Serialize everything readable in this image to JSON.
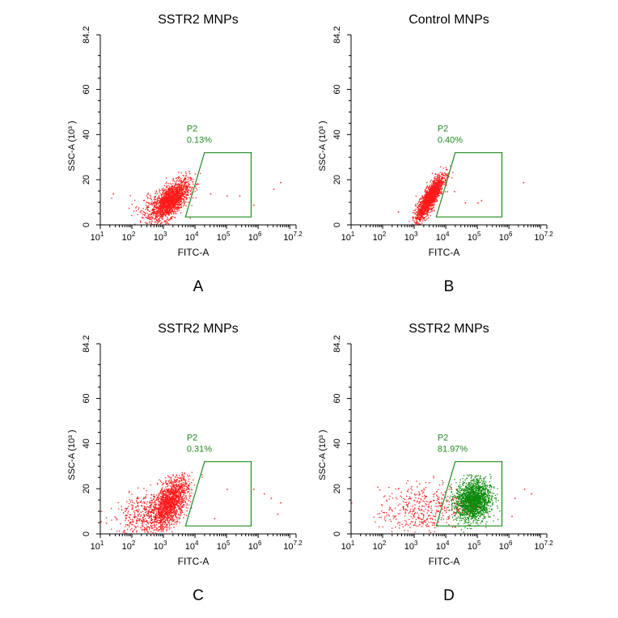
{
  "panels": [
    {
      "title": "SSTR2 MNPs",
      "letter": "A",
      "xlabel": "FITC-A",
      "ylabel": "SSC-A  (10³  )",
      "gate": {
        "name": "P2",
        "percent": "0.13%"
      }
    },
    {
      "title": "Control MNPs",
      "letter": "B",
      "xlabel": "FITC-A",
      "ylabel": "SSC-A  (10³  )",
      "gate": {
        "name": "P2",
        "percent": "0.40%"
      }
    },
    {
      "title": "SSTR2 MNPs",
      "letter": "C",
      "xlabel": "FITC-A",
      "ylabel": "SSC-A  (10³  )",
      "gate": {
        "name": "P2",
        "percent": "0.31%"
      }
    },
    {
      "title": "SSTR2 MNPs",
      "letter": "D",
      "xlabel": "FITC-A",
      "ylabel": "SSC-A  (10³  )",
      "gate": {
        "name": "P2",
        "percent": "81.97%"
      }
    }
  ],
  "colors": {
    "events": "#ff1a1a",
    "gated_events": "#0a8a0a",
    "gate": "#1f8a1f",
    "axis": "#000000"
  },
  "chart_data": [
    {
      "type": "scatter",
      "title": "SSTR2 MNPs",
      "xlabel": "FITC-A",
      "ylabel": "SSC-A (10³)",
      "x_scale": "log",
      "xlim": [
        10,
        15848932
      ],
      "ylim": [
        0,
        84.2
      ],
      "x_tick_labels": [
        "10¹",
        "10²",
        "10³",
        "10⁴",
        "10⁵",
        "10⁶",
        "10⁷·²"
      ],
      "y_tick_labels": [
        "0",
        "20",
        "40",
        "60",
        "84.2"
      ],
      "gate": {
        "name": "P2",
        "percent": 0.13,
        "vertices_xy": [
          [
            5000,
            3.5
          ],
          [
            600000,
            3.5
          ],
          [
            600000,
            32
          ],
          [
            20000,
            32
          ]
        ]
      },
      "populations": [
        {
          "color": "#ff1a1a",
          "center_x": 1600,
          "center_y": 11,
          "spread_log_x": 0.3,
          "spread_y": 4.5,
          "correlation": 0.65,
          "events": 1700
        },
        {
          "color": "#ff1a1a",
          "center_x": 500,
          "center_y": 8,
          "spread_log_x": 0.4,
          "spread_y": 4,
          "correlation": 0.3,
          "events": 140
        }
      ],
      "outliers": [
        [
          30000,
          14
        ],
        [
          100000,
          13
        ],
        [
          250000,
          13
        ],
        [
          700000,
          9
        ],
        [
          3000000,
          16
        ],
        [
          5000000,
          19
        ],
        [
          25,
          14
        ]
      ]
    },
    {
      "type": "scatter",
      "title": "Control MNPs",
      "xlabel": "FITC-A",
      "ylabel": "SSC-A (10³)",
      "x_scale": "log",
      "xlim": [
        10,
        15848932
      ],
      "ylim": [
        0,
        84.2
      ],
      "x_tick_labels": [
        "10¹",
        "10²",
        "10³",
        "10⁴",
        "10⁵",
        "10⁶",
        "10⁷·²"
      ],
      "y_tick_labels": [
        "0",
        "20",
        "40",
        "60",
        "84.2"
      ],
      "gate": {
        "name": "P2",
        "percent": 0.4,
        "vertices_xy": [
          [
            5000,
            3.5
          ],
          [
            600000,
            3.5
          ],
          [
            600000,
            32
          ],
          [
            20000,
            32
          ]
        ]
      },
      "populations": [
        {
          "color": "#ff1a1a",
          "center_x": 3000,
          "center_y": 12,
          "spread_log_x": 0.22,
          "spread_y": 5,
          "correlation": 0.85,
          "events": 1700
        }
      ],
      "outliers": [
        [
          18000,
          15
        ],
        [
          40000,
          10
        ],
        [
          100000,
          10
        ],
        [
          130000,
          11
        ],
        [
          2800000,
          19
        ],
        [
          300,
          6
        ]
      ]
    },
    {
      "type": "scatter",
      "title": "SSTR2 MNPs",
      "xlabel": "FITC-A",
      "ylabel": "SSC-A (10³)",
      "x_scale": "log",
      "xlim": [
        10,
        15848932
      ],
      "ylim": [
        0,
        84.2
      ],
      "x_tick_labels": [
        "10¹",
        "10²",
        "10³",
        "10⁴",
        "10⁵",
        "10⁶",
        "10⁷·²"
      ],
      "y_tick_labels": [
        "0",
        "20",
        "40",
        "60",
        "84.2"
      ],
      "gate": {
        "name": "P2",
        "percent": 0.31,
        "vertices_xy": [
          [
            5000,
            3.5
          ],
          [
            600000,
            3.5
          ],
          [
            600000,
            32
          ],
          [
            20000,
            32
          ]
        ]
      },
      "populations": [
        {
          "color": "#ff1a1a",
          "center_x": 1600,
          "center_y": 14,
          "spread_log_x": 0.28,
          "spread_y": 5.5,
          "correlation": 0.55,
          "events": 1500
        },
        {
          "color": "#ff1a1a",
          "center_x": 250,
          "center_y": 9,
          "spread_log_x": 0.45,
          "spread_y": 5,
          "correlation": 0.3,
          "events": 450
        }
      ],
      "outliers": [
        [
          40000,
          7
        ],
        [
          100000,
          20
        ],
        [
          700000,
          20
        ],
        [
          1500000,
          18
        ],
        [
          2500000,
          16
        ],
        [
          5000000,
          14
        ],
        [
          4000000,
          9
        ],
        [
          15,
          5
        ]
      ]
    },
    {
      "type": "scatter",
      "title": "SSTR2 MNPs",
      "xlabel": "FITC-A",
      "ylabel": "SSC-A (10³)",
      "x_scale": "log",
      "xlim": [
        10,
        15848932
      ],
      "ylim": [
        0,
        84.2
      ],
      "x_tick_labels": [
        "10¹",
        "10²",
        "10³",
        "10⁴",
        "10⁵",
        "10⁶",
        "10⁷·²"
      ],
      "y_tick_labels": [
        "0",
        "20",
        "40",
        "60",
        "84.2"
      ],
      "gate": {
        "name": "P2",
        "percent": 81.97,
        "vertices_xy": [
          [
            5000,
            3.5
          ],
          [
            600000,
            3.5
          ],
          [
            600000,
            32
          ],
          [
            20000,
            32
          ]
        ]
      },
      "populations": [
        {
          "color": "#0a8a0a",
          "center_x": 70000,
          "center_y": 15,
          "spread_log_x": 0.28,
          "spread_y": 4.5,
          "correlation": 0.1,
          "events": 1800
        },
        {
          "color": "#ff1a1a",
          "center_x": 1500,
          "center_y": 11,
          "spread_log_x": 0.65,
          "spread_y": 6,
          "correlation": 0.2,
          "events": 420
        }
      ],
      "outliers": [
        [
          3000000,
          20
        ],
        [
          1500000,
          16
        ],
        [
          5000000,
          18
        ],
        [
          1200000,
          8
        ],
        [
          10,
          14
        ]
      ]
    }
  ]
}
